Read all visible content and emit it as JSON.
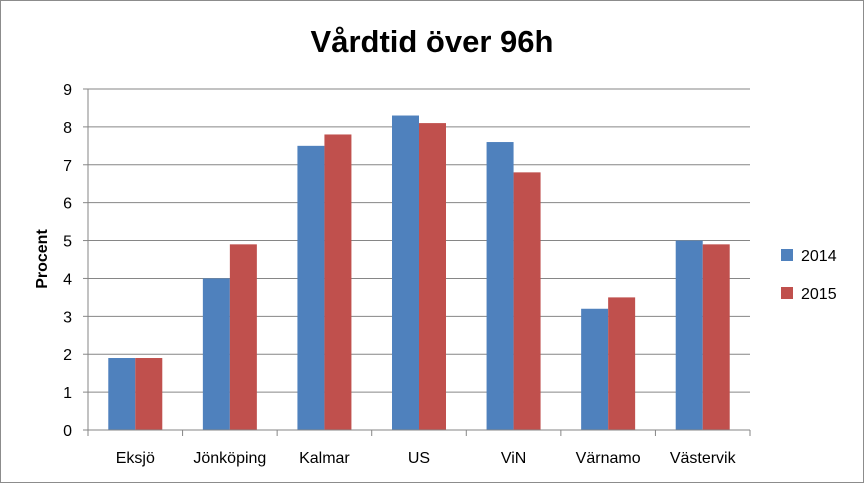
{
  "chart_data": {
    "type": "bar",
    "title": "Vårdtid över 96h",
    "xlabel": "",
    "ylabel": "Procent",
    "categories": [
      "Eksjö",
      "Jönköping",
      "Kalmar",
      "US",
      "ViN",
      "Värnamo",
      "Västervik"
    ],
    "series": [
      {
        "name": "2014",
        "color": "#4f81bd",
        "values": [
          1.9,
          4.0,
          7.5,
          8.3,
          7.6,
          3.2,
          5.0
        ]
      },
      {
        "name": "2015",
        "color": "#c0504d",
        "values": [
          1.9,
          4.9,
          7.8,
          8.1,
          6.8,
          3.5,
          4.9
        ]
      }
    ],
    "ylim": [
      0,
      9
    ],
    "yticks": [
      0,
      1,
      2,
      3,
      4,
      5,
      6,
      7,
      8,
      9
    ],
    "grid": true,
    "legend_position": "right"
  }
}
